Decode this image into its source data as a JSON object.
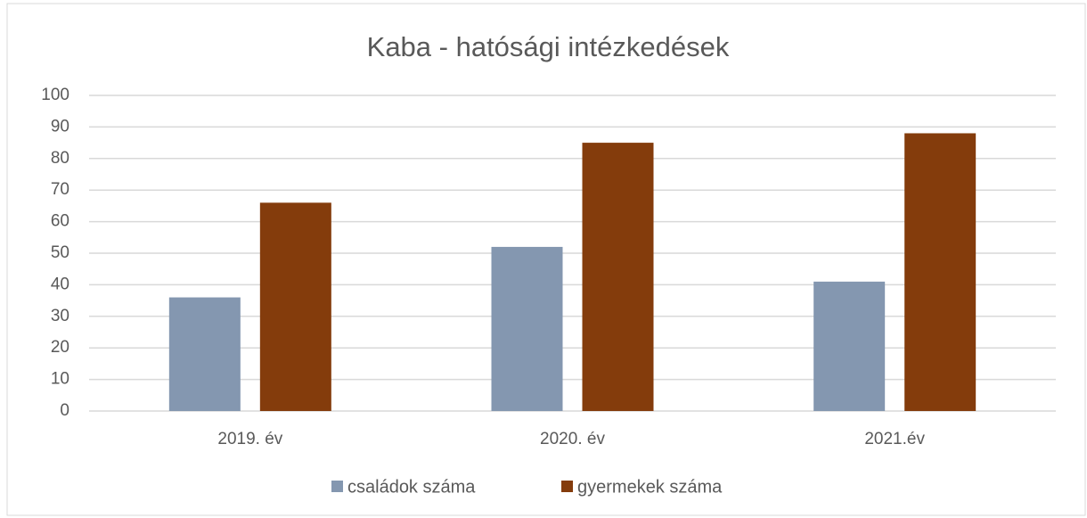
{
  "chart_data": {
    "type": "bar",
    "title": "Kaba - hatósági intézkedések",
    "categories": [
      "2019. év",
      "2020. év",
      "2021.év"
    ],
    "series": [
      {
        "name": "családok száma",
        "color": "#8497b0",
        "values": [
          36,
          52,
          41
        ]
      },
      {
        "name": "gyermekek száma",
        "color": "#843c0c",
        "values": [
          66,
          85,
          88
        ]
      }
    ],
    "ylim": [
      0,
      100
    ],
    "yticks": [
      0,
      10,
      20,
      30,
      40,
      50,
      60,
      70,
      80,
      90,
      100
    ],
    "grid": true,
    "legend": "bottom"
  }
}
